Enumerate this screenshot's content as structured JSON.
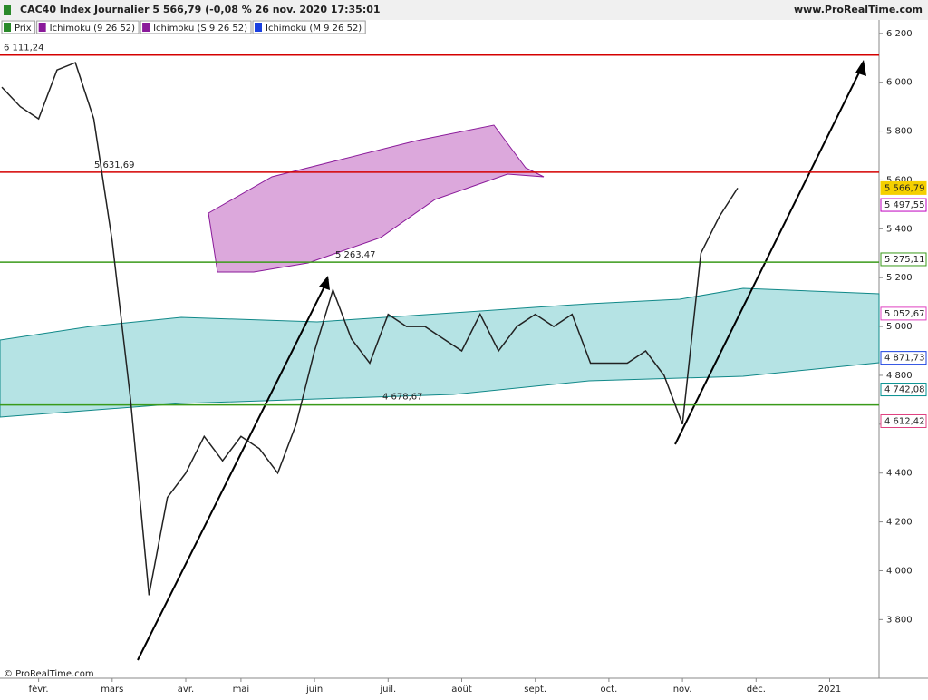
{
  "header": {
    "title": "CAC40 Index Journalier 5 566,79 (-0,08 % 26 nov. 2020 17:35:01",
    "site": "www.ProRealTime.com"
  },
  "legend": [
    "Prix",
    "Ichimoku (9 26 52)",
    "Ichimoku (S 9 26 52)",
    "Ichimoku (M 9 26 52)"
  ],
  "footer": "© ProRealTime.com",
  "chart_data": {
    "type": "line",
    "categories": [
      null,
      null,
      "févr.",
      null,
      null,
      null,
      "mars",
      null,
      null,
      null,
      "avr.",
      null,
      null,
      "mai",
      null,
      null,
      null,
      "juin",
      null,
      null,
      null,
      "juil.",
      null,
      null,
      null,
      "août",
      null,
      null,
      null,
      "sept.",
      null,
      null,
      null,
      "oct.",
      null,
      null,
      null,
      "nov.",
      null,
      null,
      null,
      "déc.",
      null,
      null,
      null,
      "2021",
      null,
      null
    ],
    "series": [
      {
        "name": "Prix",
        "color": "#222222",
        "values": [
          5980,
          5900,
          5850,
          6050,
          6080,
          5850,
          5350,
          4700,
          3900,
          4300,
          4400,
          4550,
          4450,
          4550,
          4500,
          4400,
          4600,
          4900,
          5150,
          4950,
          4850,
          5050,
          5000,
          5000,
          4950,
          4900,
          5050,
          4900,
          5000,
          5050,
          5000,
          5050,
          4850,
          4850,
          4850,
          4900,
          4800,
          4600,
          5300,
          5450,
          5566.79,
          null,
          null,
          null,
          null,
          null,
          null,
          null
        ]
      }
    ],
    "ylim": [
      3560,
      6255
    ],
    "yticks": [
      {
        "value": 3800,
        "label": "3 800"
      },
      {
        "value": 4000,
        "label": "4 000"
      },
      {
        "value": 4200,
        "label": "4 200"
      },
      {
        "value": 4400,
        "label": "4 400"
      },
      {
        "value": 4600,
        "label": "4 600"
      },
      {
        "value": 4800,
        "label": "4 800"
      },
      {
        "value": 5000,
        "label": "5 000"
      },
      {
        "value": 5200,
        "label": "5 200"
      },
      {
        "value": 5400,
        "label": "5 400"
      },
      {
        "value": 5600,
        "label": "5 600"
      },
      {
        "value": 5800,
        "label": "5 800"
      },
      {
        "value": 6000,
        "label": "6 000"
      },
      {
        "value": 6200,
        "label": "6 200"
      }
    ],
    "levels": [
      {
        "value": 6111.24,
        "label": "6 111,24",
        "color": "#d40000"
      },
      {
        "value": 5631.69,
        "label": "5 631,69",
        "color": "#d40000"
      },
      {
        "value": 5263.47,
        "label": "5 263,47",
        "color": "#3a9a1a"
      },
      {
        "value": 4678.67,
        "label": "4 678,67",
        "color": "#3a9a1a"
      }
    ],
    "price_tags": [
      {
        "value": 5566.79,
        "label": "5 566,79",
        "color": "#f5d000"
      },
      {
        "value": 5497.55,
        "label": "5 497,55",
        "color": "#c000c0"
      },
      {
        "value": 5275.11,
        "label": "5 275,11",
        "color": "#3a9a1a"
      },
      {
        "value": 5052.67,
        "label": "5 052,67",
        "color": "#e040c0"
      },
      {
        "value": 4871.73,
        "label": "4 871,73",
        "color": "#1a40e0"
      },
      {
        "value": 4742.08,
        "label": "4 742,08",
        "color": "#009090"
      },
      {
        "value": 4612.42,
        "label": "4 612,42",
        "color": "#e04080"
      }
    ]
  }
}
